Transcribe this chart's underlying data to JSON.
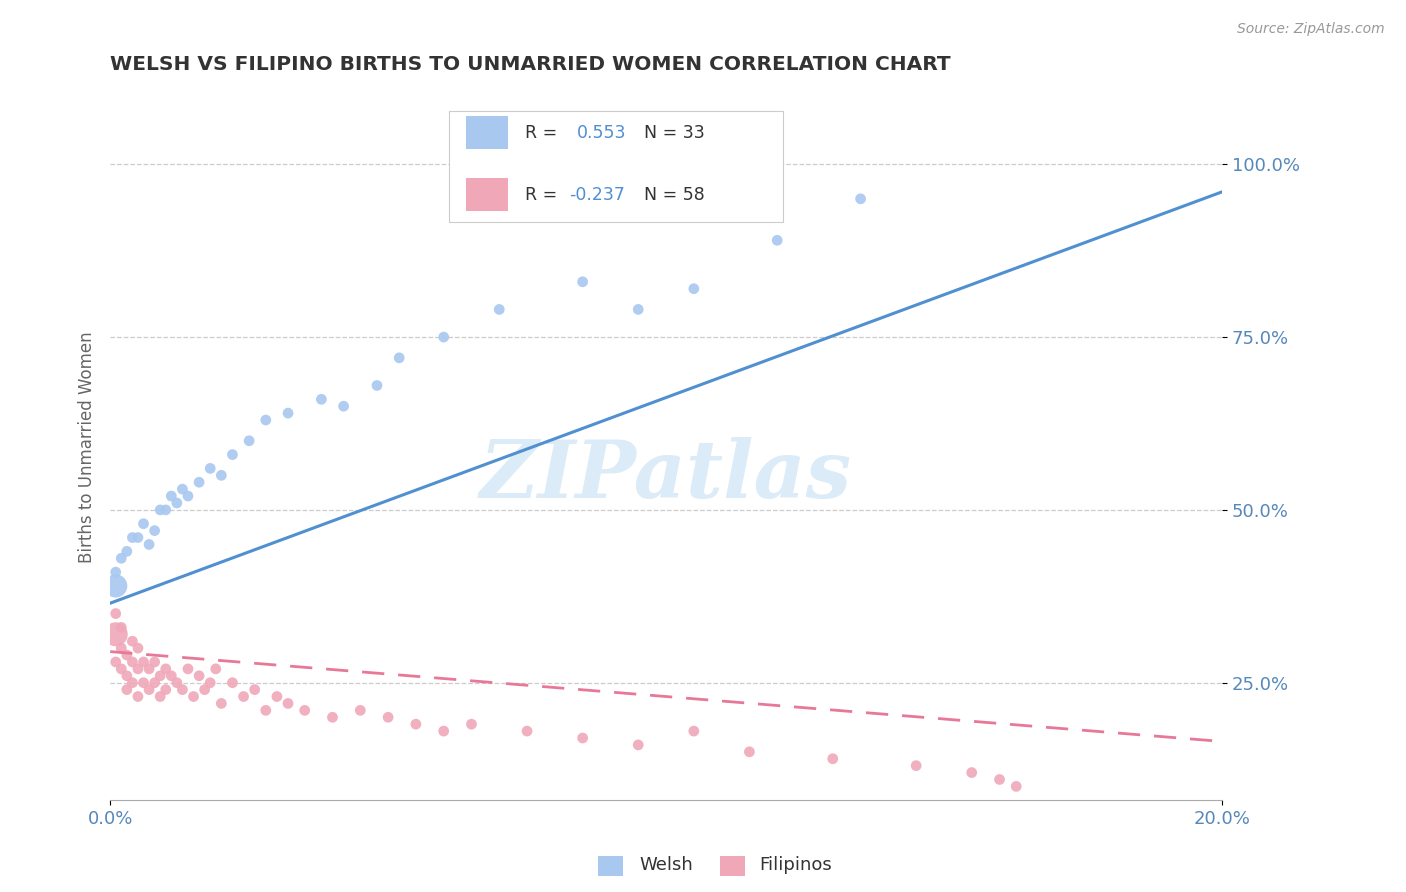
{
  "title": "WELSH VS FILIPINO BIRTHS TO UNMARRIED WOMEN CORRELATION CHART",
  "source": "Source: ZipAtlas.com",
  "ylabel": "Births to Unmarried Women",
  "ytick_labels": [
    "25.0%",
    "50.0%",
    "75.0%",
    "100.0%"
  ],
  "ytick_vals": [
    0.25,
    0.5,
    0.75,
    1.0
  ],
  "xtick_labels": [
    "0.0%",
    "20.0%"
  ],
  "xtick_vals": [
    0.0,
    0.2
  ],
  "watermark": "ZIPatlas",
  "welsh_color": "#a8c8f0",
  "filipino_color": "#f0a8b8",
  "welsh_line_color": "#5090d0",
  "filipino_line_color": "#e87898",
  "background_color": "#ffffff",
  "xlim": [
    0.0,
    0.2
  ],
  "ylim": [
    0.08,
    1.1
  ],
  "welsh_x": [
    0.001,
    0.001,
    0.002,
    0.003,
    0.004,
    0.005,
    0.006,
    0.007,
    0.008,
    0.009,
    0.01,
    0.011,
    0.012,
    0.013,
    0.014,
    0.016,
    0.018,
    0.02,
    0.022,
    0.025,
    0.028,
    0.032,
    0.038,
    0.042,
    0.048,
    0.052,
    0.06,
    0.07,
    0.085,
    0.095,
    0.105,
    0.12,
    0.135
  ],
  "welsh_y": [
    0.39,
    0.41,
    0.43,
    0.44,
    0.46,
    0.46,
    0.48,
    0.45,
    0.47,
    0.5,
    0.5,
    0.52,
    0.51,
    0.53,
    0.52,
    0.54,
    0.56,
    0.55,
    0.58,
    0.6,
    0.63,
    0.64,
    0.66,
    0.65,
    0.68,
    0.72,
    0.75,
    0.79,
    0.83,
    0.79,
    0.82,
    0.89,
    0.95
  ],
  "welsh_sizes": [
    280,
    60,
    60,
    60,
    60,
    60,
    60,
    60,
    60,
    60,
    60,
    60,
    60,
    60,
    60,
    60,
    60,
    60,
    60,
    60,
    60,
    60,
    60,
    60,
    60,
    60,
    60,
    60,
    60,
    60,
    60,
    60,
    60
  ],
  "filipino_x": [
    0.001,
    0.001,
    0.001,
    0.002,
    0.002,
    0.002,
    0.003,
    0.003,
    0.003,
    0.004,
    0.004,
    0.004,
    0.005,
    0.005,
    0.005,
    0.006,
    0.006,
    0.007,
    0.007,
    0.008,
    0.008,
    0.009,
    0.009,
    0.01,
    0.01,
    0.011,
    0.012,
    0.013,
    0.014,
    0.015,
    0.016,
    0.017,
    0.018,
    0.019,
    0.02,
    0.022,
    0.024,
    0.026,
    0.028,
    0.03,
    0.032,
    0.035,
    0.04,
    0.045,
    0.05,
    0.055,
    0.06,
    0.065,
    0.075,
    0.085,
    0.095,
    0.105,
    0.115,
    0.13,
    0.145,
    0.155,
    0.16,
    0.163
  ],
  "filipino_y": [
    0.32,
    0.28,
    0.35,
    0.3,
    0.27,
    0.33,
    0.26,
    0.29,
    0.24,
    0.28,
    0.31,
    0.25,
    0.27,
    0.3,
    0.23,
    0.28,
    0.25,
    0.27,
    0.24,
    0.28,
    0.25,
    0.26,
    0.23,
    0.27,
    0.24,
    0.26,
    0.25,
    0.24,
    0.27,
    0.23,
    0.26,
    0.24,
    0.25,
    0.27,
    0.22,
    0.25,
    0.23,
    0.24,
    0.21,
    0.23,
    0.22,
    0.21,
    0.2,
    0.21,
    0.2,
    0.19,
    0.18,
    0.19,
    0.18,
    0.17,
    0.16,
    0.18,
    0.15,
    0.14,
    0.13,
    0.12,
    0.11,
    0.1
  ],
  "filipino_sizes": [
    300,
    60,
    60,
    60,
    60,
    60,
    60,
    60,
    60,
    60,
    60,
    60,
    60,
    60,
    60,
    60,
    60,
    60,
    60,
    60,
    60,
    60,
    60,
    60,
    60,
    60,
    60,
    60,
    60,
    60,
    60,
    60,
    60,
    60,
    60,
    60,
    60,
    60,
    60,
    60,
    60,
    60,
    60,
    60,
    60,
    60,
    60,
    60,
    60,
    60,
    60,
    60,
    60,
    60,
    60,
    60,
    60,
    60
  ],
  "welsh_line_x": [
    0.0,
    0.2
  ],
  "welsh_line_y": [
    0.365,
    0.96
  ],
  "filipino_line_x": [
    0.0,
    0.2
  ],
  "filipino_line_y": [
    0.295,
    0.165
  ]
}
